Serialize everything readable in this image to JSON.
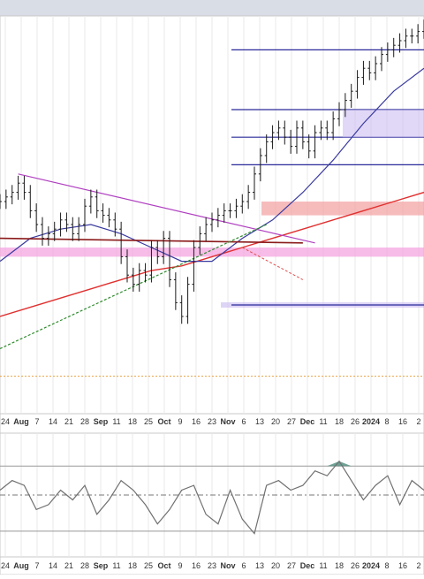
{
  "chart_data": {
    "type": "line",
    "title": "",
    "colors": {
      "price_bars": "#1a1a1a",
      "sma_short": "#3a3aa0",
      "sma_long": "#e03030",
      "trend_line": "#b040c0",
      "support_line": "#8b1a1a",
      "uptrend_line": "#2e8b2e",
      "resistance_lines": "#2a2a9a",
      "highlight_pink": "#f4a6e0",
      "highlight_red": "#f3a4a4",
      "consolidation_box": "#c8b8f0",
      "indicator_line": "#707070",
      "indicator_fill": "#4a8a7a",
      "zero_line": "#777777"
    },
    "x_axis": {
      "tick_labels": [
        "24",
        "Aug",
        "7",
        "14",
        "21",
        "28",
        "Sep",
        "11",
        "18",
        "25",
        "Oct",
        "9",
        "16",
        "23",
        "Nov",
        "6",
        "13",
        "20",
        "27",
        "Dec",
        "11",
        "18",
        "26",
        "2024",
        "8",
        "16",
        "2"
      ],
      "bold_labels": [
        "Aug",
        "Sep",
        "Oct",
        "Nov",
        "Dec",
        "2024"
      ]
    },
    "price_series": {
      "name": "",
      "x": [
        0,
        2,
        4,
        6,
        8,
        10,
        12,
        14,
        16,
        18,
        20,
        22,
        24,
        26,
        28,
        30,
        32,
        34,
        36,
        38,
        40,
        42,
        44,
        46,
        48,
        50,
        52,
        54,
        56,
        58,
        60,
        62,
        64,
        66,
        68,
        70,
        72,
        74,
        76,
        78,
        80,
        82,
        84,
        86,
        88,
        90,
        92,
        94,
        96,
        98,
        100,
        102,
        104,
        106,
        108,
        110,
        112,
        114,
        116,
        118,
        120,
        122,
        124,
        126,
        128,
        130,
        132,
        134,
        136,
        138,
        140
      ],
      "values": [
        60,
        61,
        62,
        64,
        62,
        58,
        55,
        52,
        53,
        54,
        56,
        55,
        53,
        55,
        59,
        61,
        58,
        57,
        56,
        54,
        48,
        44,
        42,
        45,
        44,
        50,
        48,
        52,
        43,
        38,
        35,
        42,
        50,
        53,
        55,
        56,
        57,
        58,
        58,
        59,
        60,
        62,
        66,
        70,
        73,
        75,
        76,
        74,
        72,
        76,
        73,
        71,
        75,
        76,
        75,
        78,
        80,
        82,
        84,
        87,
        89,
        88,
        90,
        92,
        93,
        94,
        95,
        96,
        96,
        97,
        98
      ]
    },
    "sma_short": {
      "name": "",
      "x": [
        0,
        10,
        20,
        30,
        40,
        50,
        60,
        70,
        80,
        90,
        100,
        110,
        120,
        130,
        140
      ],
      "values": [
        47,
        52,
        54,
        55,
        53,
        50,
        47,
        47,
        52,
        56,
        62,
        69,
        77,
        84,
        89
      ]
    },
    "sma_long": {
      "name": "",
      "x": [
        0,
        10,
        20,
        30,
        40,
        50,
        60,
        70,
        80,
        90,
        100,
        110,
        120,
        130,
        140
      ],
      "values": [
        35,
        37,
        39,
        41,
        43,
        45,
        46,
        48,
        50,
        52,
        54,
        56,
        58,
        60,
        62
      ]
    },
    "annotation_values": {
      "resistance_levels": [
        93,
        80,
        74,
        68
      ],
      "support_level": 37.5,
      "pink_band": [
        48,
        50
      ],
      "red_band": [
        57,
        60
      ],
      "dotted_level": 22
    },
    "indicator": {
      "name": "",
      "zero": 0,
      "upper": 12,
      "lower": -15,
      "x": [
        0,
        4,
        8,
        12,
        16,
        20,
        24,
        28,
        32,
        36,
        40,
        44,
        48,
        52,
        56,
        60,
        64,
        68,
        72,
        76,
        80,
        84,
        88,
        92,
        96,
        100,
        104,
        108,
        112,
        116,
        120,
        124,
        128,
        132,
        136,
        140
      ],
      "values": [
        2,
        6,
        4,
        -6,
        -4,
        2,
        -2,
        4,
        -8,
        -2,
        6,
        2,
        -4,
        -12,
        -6,
        2,
        4,
        -8,
        -12,
        2,
        -10,
        -16,
        4,
        6,
        2,
        4,
        10,
        8,
        14,
        6,
        -2,
        4,
        8,
        -4,
        6,
        2
      ]
    }
  }
}
